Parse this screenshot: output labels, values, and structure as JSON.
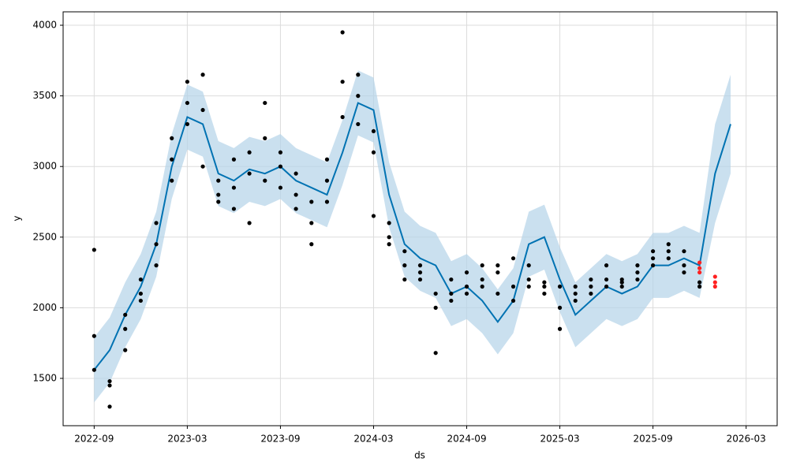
{
  "chart_data": {
    "type": "forecast",
    "xlabel": "ds",
    "ylabel": "y",
    "xlim": [
      "2022-07",
      "2026-05"
    ],
    "ylim": [
      1165,
      4095
    ],
    "xticks": [
      "2022-09",
      "2023-03",
      "2023-09",
      "2024-03",
      "2024-09",
      "2025-03",
      "2025-09",
      "2026-03"
    ],
    "yticks": [
      1500,
      2000,
      2500,
      3000,
      3500,
      4000
    ],
    "grid": true,
    "x": [
      "2022-09",
      "2022-10",
      "2022-11",
      "2022-12",
      "2023-01",
      "2023-02",
      "2023-03",
      "2023-04",
      "2023-05",
      "2023-06",
      "2023-07",
      "2023-08",
      "2023-09",
      "2023-10",
      "2023-11",
      "2023-12",
      "2024-01",
      "2024-02",
      "2024-03",
      "2024-04",
      "2024-05",
      "2024-06",
      "2024-07",
      "2024-08",
      "2024-09",
      "2024-10",
      "2024-11",
      "2024-12",
      "2025-01",
      "2025-02",
      "2025-03",
      "2025-04",
      "2025-05",
      "2025-06",
      "2025-07",
      "2025-08",
      "2025-09",
      "2025-10",
      "2025-11",
      "2025-12",
      "2026-01",
      "2026-02"
    ],
    "series": [
      {
        "type": "area",
        "color": "#b3d3e8",
        "values": [
          1790,
          1930,
          2180,
          2380,
          2680,
          3230,
          3580,
          3530,
          3180,
          3130,
          3210,
          3180,
          3230,
          3130,
          3080,
          3030,
          3330,
          3680,
          3630,
          3030,
          2680,
          2580,
          2530,
          2330,
          2380,
          2280,
          2130,
          2280,
          2680,
          2730,
          2430,
          2180,
          2280,
          2380,
          2330,
          2380,
          2530,
          2530,
          2580,
          2530,
          3300,
          3650
        ],
        "lower": [
          1330,
          1470,
          1720,
          1920,
          2220,
          2770,
          3120,
          3070,
          2720,
          2670,
          2750,
          2720,
          2770,
          2670,
          2620,
          2570,
          2870,
          3220,
          3170,
          2570,
          2220,
          2120,
          2070,
          1870,
          1920,
          1820,
          1670,
          1820,
          2220,
          2270,
          1970,
          1720,
          1820,
          1920,
          1870,
          1920,
          2070,
          2070,
          2120,
          2070,
          2600,
          2950
        ]
      },
      {
        "type": "line",
        "color": "#0072b2",
        "values": [
          1560,
          1700,
          1950,
          2150,
          2450,
          3000,
          3350,
          3300,
          2950,
          2900,
          2980,
          2950,
          3000,
          2900,
          2850,
          2800,
          3100,
          3450,
          3400,
          2800,
          2450,
          2350,
          2300,
          2100,
          2150,
          2050,
          1900,
          2050,
          2450,
          2500,
          2200,
          1950,
          2050,
          2150,
          2100,
          2150,
          2300,
          2300,
          2350,
          2300,
          2950,
          3300
        ]
      },
      {
        "type": "scatter",
        "color": "#000000",
        "x": [
          "2022-09",
          "2022-09",
          "2022-09",
          "2022-10",
          "2022-10",
          "2022-10",
          "2022-11",
          "2022-11",
          "2022-11",
          "2022-12",
          "2022-12",
          "2022-12",
          "2023-01",
          "2023-01",
          "2023-01",
          "2023-02",
          "2023-02",
          "2023-02",
          "2023-03",
          "2023-03",
          "2023-03",
          "2023-04",
          "2023-04",
          "2023-04",
          "2023-05",
          "2023-05",
          "2023-05",
          "2023-06",
          "2023-06",
          "2023-06",
          "2023-07",
          "2023-07",
          "2023-07",
          "2023-08",
          "2023-08",
          "2023-08",
          "2023-09",
          "2023-09",
          "2023-09",
          "2023-10",
          "2023-10",
          "2023-10",
          "2023-11",
          "2023-11",
          "2023-11",
          "2023-12",
          "2023-12",
          "2023-12",
          "2024-01",
          "2024-01",
          "2024-01",
          "2024-02",
          "2024-02",
          "2024-02",
          "2024-03",
          "2024-03",
          "2024-03",
          "2024-04",
          "2024-04",
          "2024-04",
          "2024-05",
          "2024-05",
          "2024-05",
          "2024-06",
          "2024-06",
          "2024-06",
          "2024-07",
          "2024-07",
          "2024-07",
          "2024-08",
          "2024-08",
          "2024-08",
          "2024-09",
          "2024-09",
          "2024-09",
          "2024-10",
          "2024-10",
          "2024-10",
          "2024-11",
          "2024-11",
          "2024-11",
          "2024-12",
          "2024-12",
          "2024-12",
          "2025-01",
          "2025-01",
          "2025-01",
          "2025-02",
          "2025-02",
          "2025-02",
          "2025-03",
          "2025-03",
          "2025-03",
          "2025-04",
          "2025-04",
          "2025-04",
          "2025-05",
          "2025-05",
          "2025-05",
          "2025-06",
          "2025-06",
          "2025-06",
          "2025-07",
          "2025-07",
          "2025-07",
          "2025-08",
          "2025-08",
          "2025-08",
          "2025-09",
          "2025-09",
          "2025-09",
          "2025-10",
          "2025-10",
          "2025-10",
          "2025-11",
          "2025-11",
          "2025-11",
          "2025-12",
          "2025-12"
        ],
        "values": [
          2410,
          1800,
          1560,
          1450,
          1300,
          1480,
          1700,
          1850,
          1950,
          2050,
          2200,
          2100,
          2300,
          2450,
          2600,
          2900,
          3200,
          3050,
          3450,
          3300,
          3600,
          3400,
          3650,
          3000,
          2800,
          2750,
          2900,
          2700,
          2850,
          3050,
          2950,
          2600,
          3100,
          3200,
          3450,
          2900,
          2850,
          3000,
          3100,
          2950,
          2700,
          2800,
          2750,
          2600,
          2450,
          2750,
          2900,
          3050,
          3350,
          3600,
          3950,
          3650,
          3500,
          3300,
          3250,
          3100,
          2650,
          2500,
          2450,
          2600,
          2300,
          2200,
          2400,
          2200,
          2250,
          2300,
          2100,
          2000,
          1680,
          2100,
          2200,
          2050,
          2150,
          2250,
          2100,
          2200,
          2300,
          2150,
          2250,
          2100,
          2300,
          2150,
          2050,
          2350,
          2200,
          2150,
          2300,
          2150,
          2100,
          2180,
          2150,
          1850,
          2000,
          2100,
          2150,
          2050,
          2150,
          2100,
          2200,
          2200,
          2150,
          2300,
          2150,
          2200,
          2180,
          2250,
          2300,
          2200,
          2300,
          2350,
          2400,
          2450,
          2400,
          2350,
          2400,
          2300,
          2250,
          2150,
          2180
        ]
      },
      {
        "type": "scatter",
        "color": "#ff2020",
        "x": [
          "2025-12",
          "2025-12",
          "2025-12",
          "2026-01",
          "2026-01",
          "2026-01"
        ],
        "values": [
          2320,
          2280,
          2250,
          2220,
          2180,
          2150
        ]
      }
    ]
  }
}
